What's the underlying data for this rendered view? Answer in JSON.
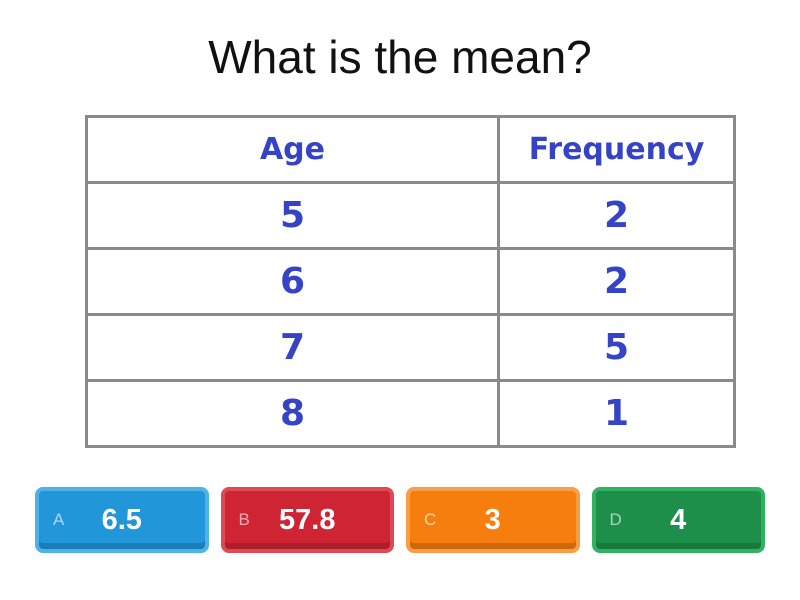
{
  "question": {
    "title": "What is the mean?",
    "table": {
      "headers": [
        "Age",
        "Frequency"
      ],
      "rows": [
        [
          "5",
          "2"
        ],
        [
          "6",
          "2"
        ],
        [
          "7",
          "5"
        ],
        [
          "8",
          "1"
        ]
      ],
      "text_color": "#3543c6",
      "border_color": "#8a8a8a"
    }
  },
  "chart_data": {
    "type": "table",
    "title": "What is the mean?",
    "columns": [
      "Age",
      "Frequency"
    ],
    "rows": [
      [
        5,
        2
      ],
      [
        6,
        2
      ],
      [
        7,
        5
      ],
      [
        8,
        1
      ]
    ]
  },
  "answers": [
    {
      "letter": "A",
      "value": "6.5",
      "color": "#2196d8",
      "rim": "#4cb2e8"
    },
    {
      "letter": "B",
      "value": "57.8",
      "color": "#cf2434",
      "rim": "#dd4a56"
    },
    {
      "letter": "C",
      "value": "3",
      "color": "#f67e0e",
      "rim": "#f99e44"
    },
    {
      "letter": "D",
      "value": "4",
      "color": "#1e8f4b",
      "rim": "#31b261"
    }
  ]
}
